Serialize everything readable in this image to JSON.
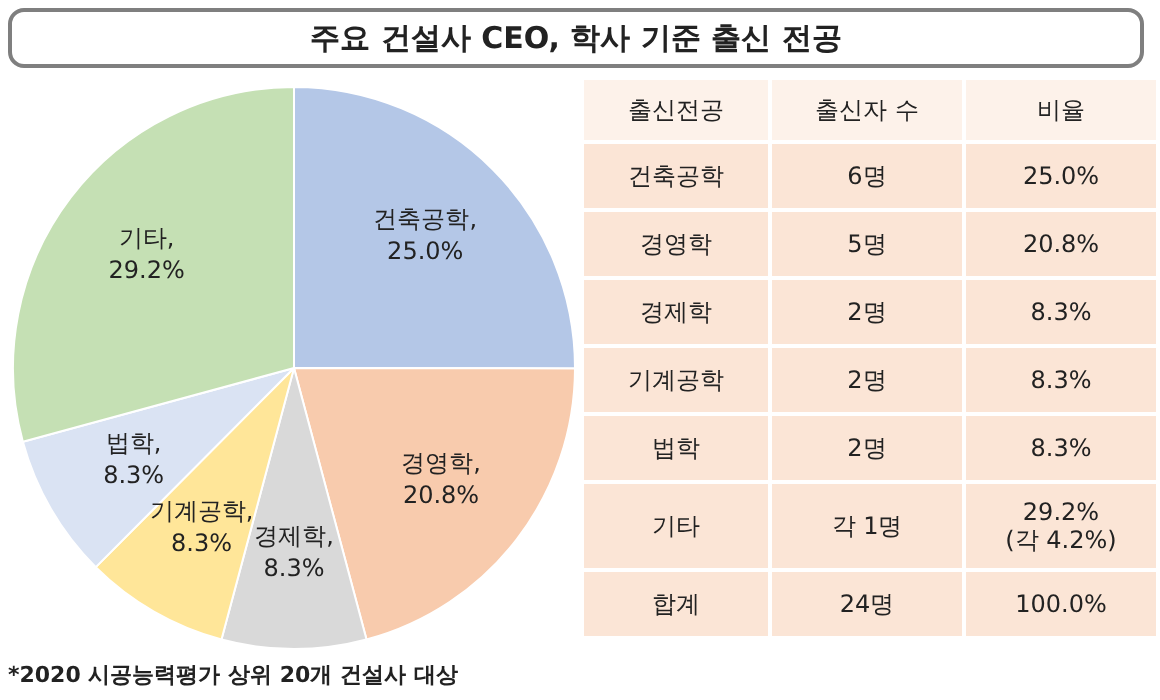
{
  "chart_data": [
    {
      "type": "pie",
      "title": "주요 건설사 CEO, 학사 기준 출신 전공",
      "categories": [
        "건축공학",
        "경영학",
        "경제학",
        "기계공학",
        "법학",
        "기타"
      ],
      "values": [
        25.0,
        20.8,
        8.3,
        8.3,
        8.3,
        29.2
      ],
      "colors": [
        "#b4c7e7",
        "#f8cbad",
        "#d9d9d9",
        "#ffe699",
        "#dae3f3",
        "#c5e0b4"
      ],
      "value_labels": [
        ", 25.0%",
        ", 20.8%",
        ", 8.3%",
        ", 8.3%",
        ", 8.3%",
        ", 29.2%"
      ],
      "annotations": [
        "*2020 시공능력평가 상위 20개 건설사 대상"
      ]
    },
    {
      "type": "other",
      "annotations": [
        "출신전공",
        "출신자 수",
        "비율",
        "건축공학",
        "6명",
        "25.0%",
        "경영학",
        "5명",
        "20.8%",
        "경제학",
        "2명",
        "8.3%",
        "기계공학",
        "2명",
        "8.3%",
        "법학",
        "2명",
        "8.3%",
        "기타",
        "각 1명",
        "29.2%\n(각 4.2%)",
        "합계",
        "24명",
        "100.0%"
      ]
    }
  ]
}
